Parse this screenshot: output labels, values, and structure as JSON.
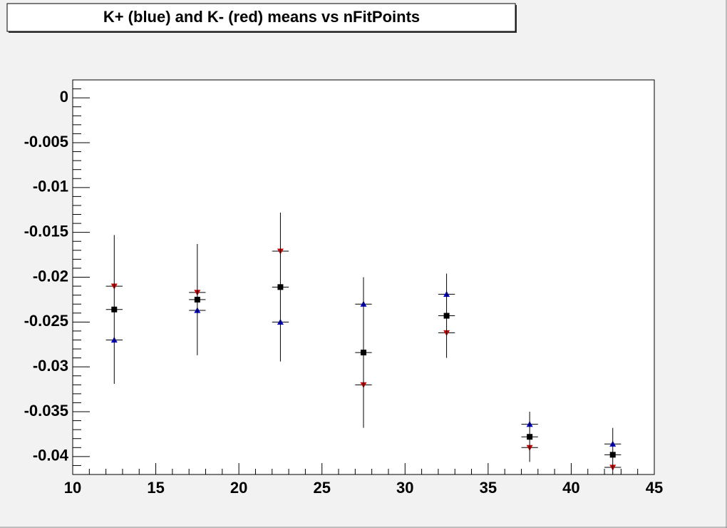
{
  "chart_data": {
    "type": "scatter",
    "title": "K+ (blue) and K- (red) means vs nFitPoints",
    "x": [
      12.5,
      17.5,
      22.5,
      27.5,
      32.5,
      37.5,
      42.5
    ],
    "series": [
      {
        "color": "#0000cc",
        "marker": "triangle-up",
        "values": [
          -0.027,
          -0.0237,
          -0.025,
          -0.023,
          -0.0219,
          -0.0364,
          -0.0386
        ],
        "xerr": [
          0.5,
          0.5,
          0.5,
          0.5,
          0.5,
          0.5,
          0.5
        ]
      },
      {
        "color": "#cc0000",
        "marker": "triangle-down",
        "values": [
          -0.021,
          -0.0217,
          -0.0171,
          -0.032,
          -0.0262,
          -0.039,
          -0.0412
        ],
        "xerr": [
          0.5,
          0.5,
          0.5,
          0.5,
          0.5,
          0.5,
          0.5
        ]
      },
      {
        "color": "#000000",
        "marker": "square",
        "values": [
          -0.0236,
          -0.0225,
          -0.0211,
          -0.0284,
          -0.0243,
          -0.0378,
          -0.0398
        ],
        "errors": [
          0.0083,
          0.0062,
          0.0083,
          0.0084,
          0.0047,
          0.0028,
          0.003
        ],
        "xerr": [
          0.5,
          0.5,
          0.5,
          0.5,
          0.5,
          0.5,
          0.5
        ]
      }
    ],
    "xlim": [
      10,
      45
    ],
    "xticks": [
      10,
      15,
      20,
      25,
      30,
      35,
      40,
      45
    ],
    "ylim": [
      -0.042,
      0.002
    ],
    "yticks": [
      0,
      -0.005,
      -0.01,
      -0.015,
      -0.02,
      -0.025,
      -0.03,
      -0.035,
      -0.04
    ],
    "grid": false
  }
}
